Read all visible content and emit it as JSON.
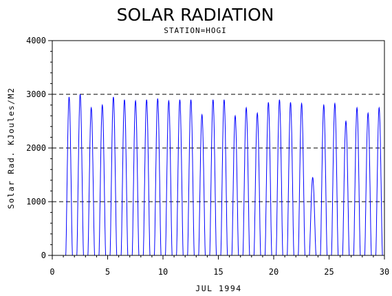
{
  "chart_data": {
    "type": "line",
    "title": "SOLAR RADIATION",
    "subtitle": "STATION=HOGI",
    "xlabel": "JUL 1994",
    "ylabel": "Solar Rad. KJoules/M2",
    "xlim": [
      0,
      30
    ],
    "ylim": [
      0,
      4000
    ],
    "x_ticks": [
      0,
      5,
      10,
      15,
      20,
      25,
      30
    ],
    "y_ticks": [
      0,
      1000,
      2000,
      3000,
      4000
    ],
    "grid": "horizontal dashed",
    "series_color": "#0000ff",
    "series": [
      {
        "days": [
          1,
          2,
          3,
          4,
          5,
          6,
          7,
          8,
          9,
          10,
          11,
          12,
          13,
          14,
          15,
          16,
          17,
          18,
          19,
          20,
          21,
          22,
          23,
          24,
          25,
          26,
          27,
          28,
          29,
          30
        ],
        "daily_peak": [
          2950,
          3000,
          2750,
          2800,
          2950,
          2900,
          2880,
          2900,
          2920,
          2880,
          2900,
          2900,
          2620,
          2900,
          2900,
          2600,
          2750,
          2650,
          2850,
          2900,
          2850,
          2830,
          1450,
          2800,
          2830,
          2500,
          2750,
          2650,
          2750,
          0
        ]
      }
    ]
  }
}
